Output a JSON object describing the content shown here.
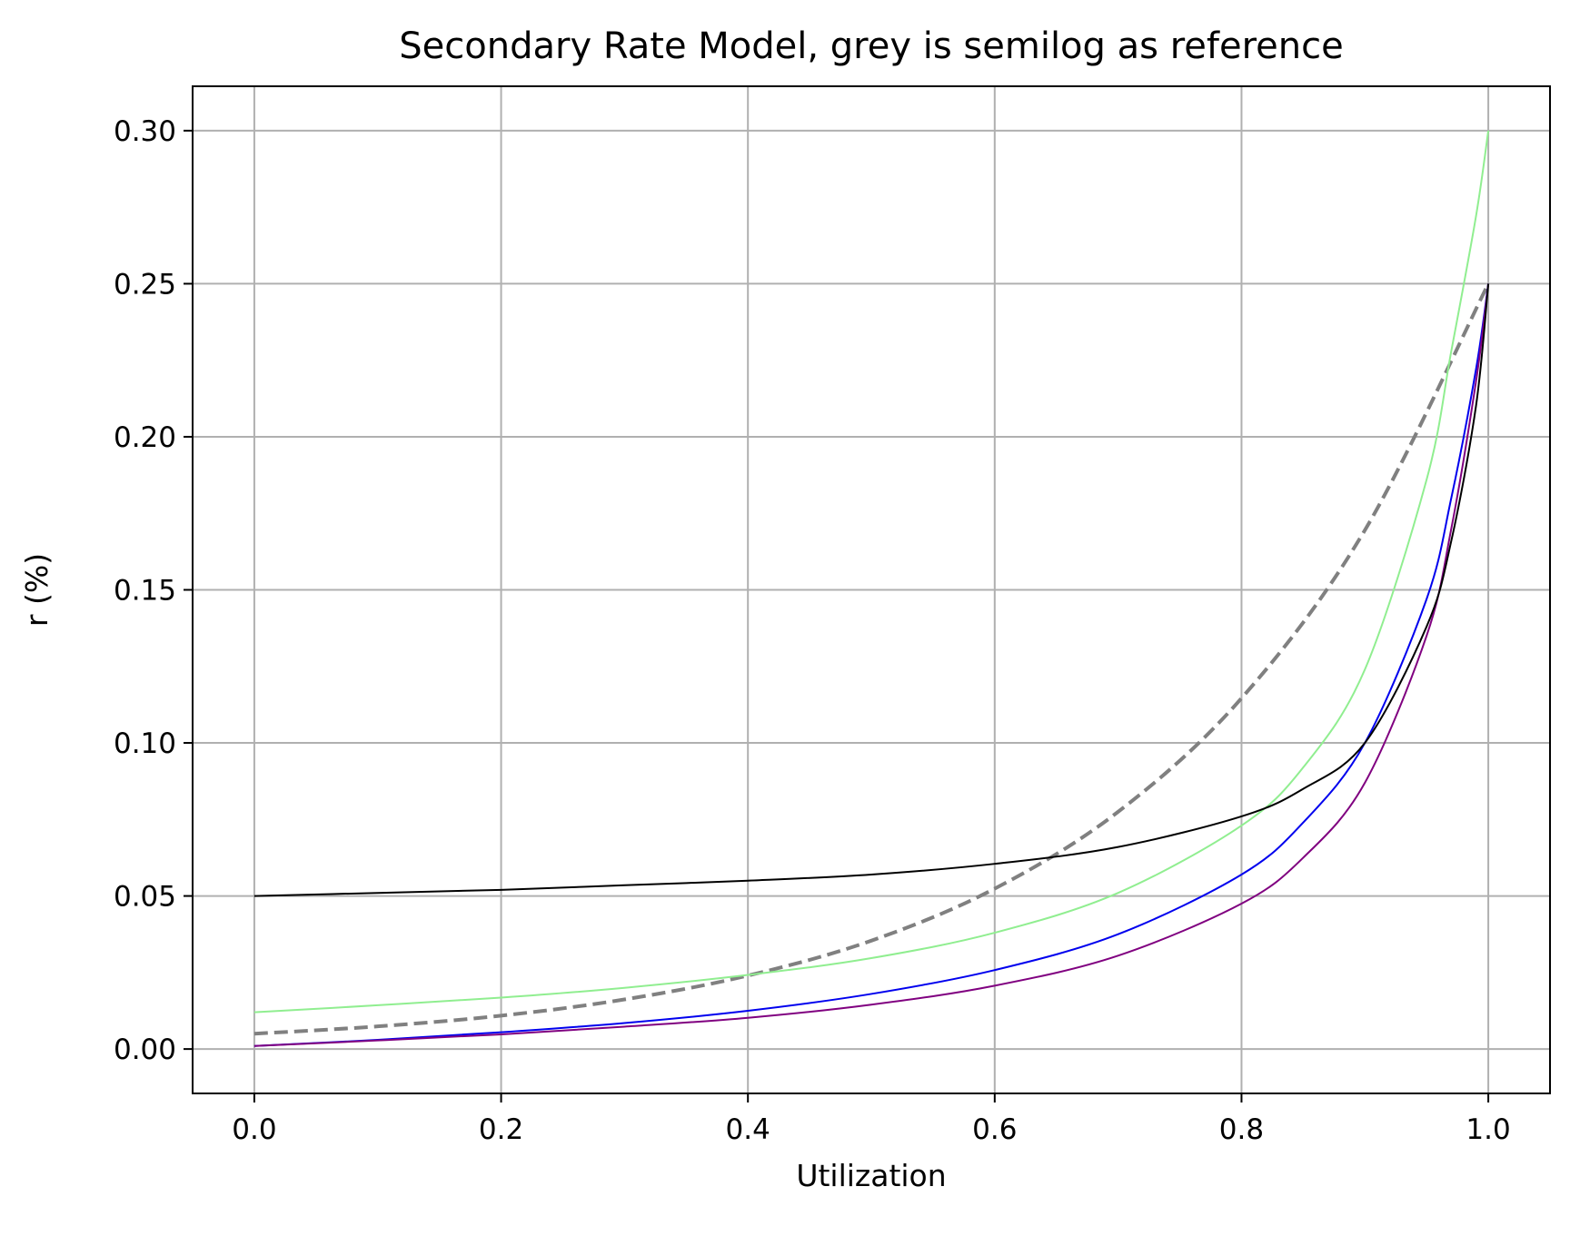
{
  "chart_data": {
    "type": "line",
    "title": "Secondary Rate Model, grey is semilog as reference",
    "xlabel": "Utilization",
    "ylabel": "r (%)",
    "xlim": [
      -0.05,
      1.05
    ],
    "ylim": [
      -0.0145,
      0.3145
    ],
    "xticks": [
      0.0,
      0.2,
      0.4,
      0.6,
      0.8,
      1.0
    ],
    "xtick_labels": [
      "0.0",
      "0.2",
      "0.4",
      "0.6",
      "0.8",
      "1.0"
    ],
    "yticks": [
      0.0,
      0.05,
      0.1,
      0.15,
      0.2,
      0.25,
      0.3
    ],
    "ytick_labels": [
      "0.00",
      "0.05",
      "0.10",
      "0.15",
      "0.20",
      "0.25",
      "0.30"
    ],
    "grid": true,
    "legend": "none",
    "series": [
      {
        "color": "#808080",
        "style": "dashed",
        "x": [
          0.0,
          0.1,
          0.2,
          0.3,
          0.4,
          0.5,
          0.6,
          0.7,
          0.8,
          0.9,
          1.0
        ],
        "y": [
          0.005,
          0.0074,
          0.0109,
          0.0162,
          0.024,
          0.0354,
          0.0524,
          0.0775,
          0.1146,
          0.1695,
          0.25
        ]
      },
      {
        "color": "#90ee90",
        "style": "solid",
        "x": [
          0.0,
          0.1,
          0.2,
          0.3,
          0.4,
          0.5,
          0.6,
          0.7,
          0.8,
          0.85,
          0.9,
          0.95,
          0.97,
          0.99,
          1.0
        ],
        "y": [
          0.012,
          0.0143,
          0.0168,
          0.02,
          0.0242,
          0.0297,
          0.038,
          0.051,
          0.073,
          0.092,
          0.124,
          0.186,
          0.228,
          0.272,
          0.3
        ]
      },
      {
        "color": "#0000ee",
        "style": "solid",
        "x": [
          0.0,
          0.1,
          0.2,
          0.3,
          0.4,
          0.5,
          0.6,
          0.7,
          0.8,
          0.85,
          0.9,
          0.95,
          0.97,
          0.99,
          1.0
        ],
        "y": [
          0.001,
          0.003,
          0.0055,
          0.0085,
          0.0125,
          0.018,
          0.0258,
          0.0375,
          0.057,
          0.074,
          0.1,
          0.147,
          0.18,
          0.222,
          0.25
        ]
      },
      {
        "color": "#800080",
        "style": "solid",
        "x": [
          0.0,
          0.1,
          0.2,
          0.3,
          0.4,
          0.5,
          0.6,
          0.7,
          0.8,
          0.85,
          0.9,
          0.95,
          0.97,
          0.99,
          1.0
        ],
        "y": [
          0.001,
          0.0028,
          0.0048,
          0.0073,
          0.0102,
          0.0145,
          0.0207,
          0.0305,
          0.0475,
          0.0625,
          0.087,
          0.135,
          0.17,
          0.218,
          0.25
        ]
      },
      {
        "color": "#000000",
        "style": "solid",
        "x": [
          0.0,
          0.1,
          0.2,
          0.3,
          0.4,
          0.5,
          0.6,
          0.7,
          0.8,
          0.85,
          0.9,
          0.95,
          0.97,
          0.99,
          1.0
        ],
        "y": [
          0.05,
          0.051,
          0.052,
          0.0535,
          0.055,
          0.057,
          0.0605,
          0.066,
          0.076,
          0.085,
          0.1,
          0.138,
          0.166,
          0.21,
          0.25
        ]
      }
    ]
  }
}
